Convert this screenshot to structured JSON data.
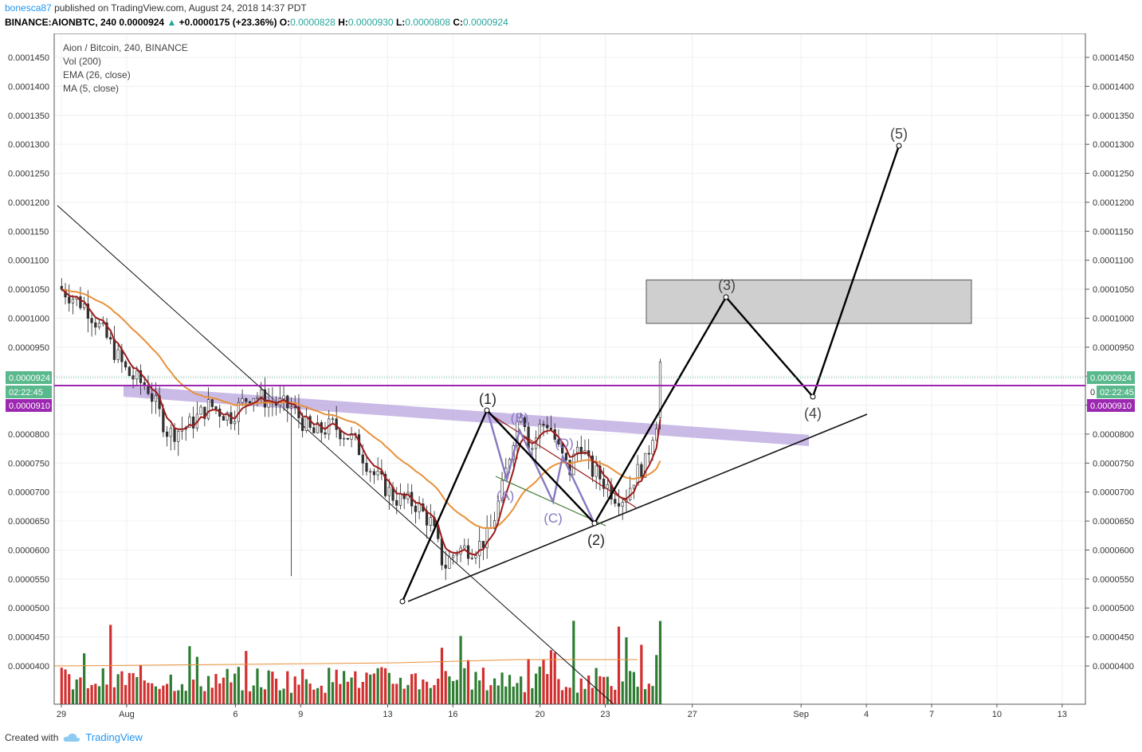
{
  "header": {
    "author": "bonesca87",
    "published_text": "published on TradingView.com, August 24, 2018 14:37 PDT",
    "symbol_line": "BINANCE:AIONBTC, 240",
    "last": "0.0000924",
    "change": "+0.0000175 (+23.36%)",
    "open_label": "O:",
    "open": "0.0000828",
    "high_label": "H:",
    "high": "0.0000930",
    "low_label": "L:",
    "low": "0.0000808",
    "close_label": "C:",
    "close": "0.0000924"
  },
  "legend": {
    "title": "Aion / Bitcoin, 240, BINANCE",
    "vol": "Vol (200)",
    "ema": "EMA (26, close)",
    "ma": "MA (5, close)"
  },
  "footer": {
    "created_with": "Created with",
    "brand": "TradingView"
  },
  "colors": {
    "up": "#2e7d32",
    "down": "#d32f2f",
    "ema": "#e8913a",
    "ma": "#9b1b1b",
    "price_badge": "#5ab88d",
    "alert_line": "#9c27b0",
    "band": "#b39ddb",
    "wave_sub": "#8878c0"
  },
  "chart_data": {
    "type": "candlestick",
    "y_ticks": [
      "0.0001450",
      "0.0001400",
      "0.0001350",
      "0.0001300",
      "0.0001250",
      "0.0001200",
      "0.0001150",
      "0.0001100",
      "0.0001050",
      "0.0001000",
      "0.0000950",
      "0.0000900",
      "0.0000850",
      "0.0000800",
      "0.0000750",
      "0.0000700",
      "0.0000650",
      "0.0000600",
      "0.0000550",
      "0.0000500",
      "0.0000450",
      "0.0000400"
    ],
    "x_ticks": [
      "29",
      "Aug",
      "6",
      "9",
      "13",
      "16",
      "20",
      "23",
      "27",
      "Sep",
      "4",
      "7",
      "10",
      "13"
    ],
    "ylim": [
      3.95e-05,
      0.0001475
    ],
    "price_badge": "0.0000924",
    "countdown_badge": "02:22:45",
    "countdown_badge_short": "0",
    "alert_badge": "0.0000910",
    "wave_labels": {
      "w1": "(1)",
      "w2": "(2)",
      "w3": "(3)",
      "w4": "(4)",
      "w5": "(5)",
      "wa": "(A)",
      "wb": "(B)",
      "wc": "(C)",
      "wd": "(D)"
    },
    "impulse_path": [
      [
        "Aug 13 PM",
        5.55e-05
      ],
      [
        "Aug 17 PM",
        8.68e-05
      ],
      [
        "Aug 22 PM",
        6.83e-05
      ],
      [
        "Aug 28",
        0.0001055
      ],
      [
        "Sep 2",
        8.93e-05
      ],
      [
        "Sep 5",
        0.0001303
      ]
    ],
    "target_box": {
      "from": "Aug 25",
      "to": "Sep 9",
      "low": 9.91e-05,
      "high": 0.0001066
    }
  }
}
